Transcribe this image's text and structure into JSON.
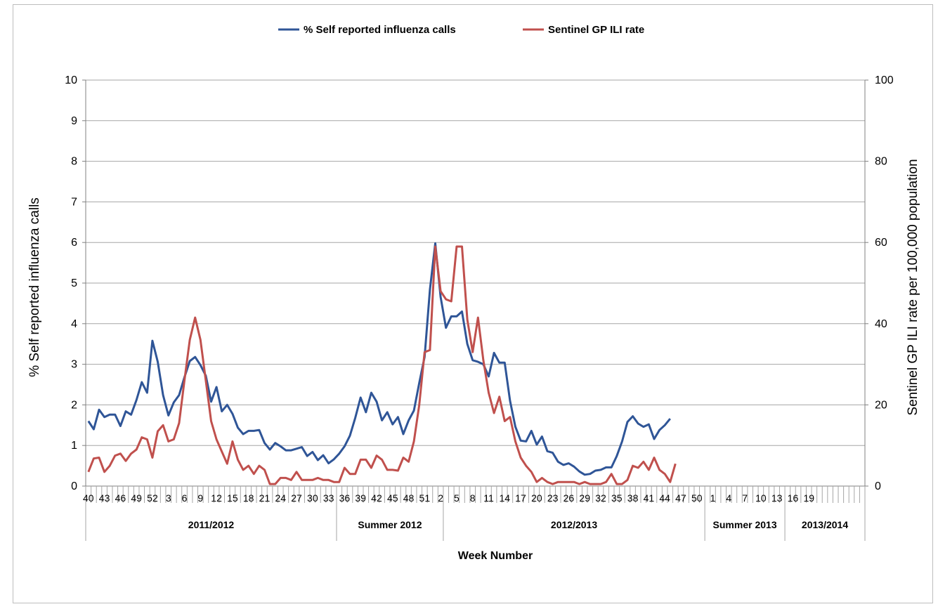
{
  "chart_data": {
    "type": "line",
    "x_axis": {
      "label": "Week Number",
      "tick_labels": [
        "40",
        "43",
        "46",
        "49",
        "52",
        "3",
        "6",
        "9",
        "12",
        "15",
        "18",
        "21",
        "24",
        "27",
        "30",
        "33",
        "36",
        "39",
        "42",
        "45",
        "48",
        "51",
        "2",
        "5",
        "8",
        "11",
        "14",
        "17",
        "20",
        "23",
        "26",
        "29",
        "32",
        "35",
        "38",
        "41",
        "44",
        "47",
        "50",
        "1",
        "4",
        "7",
        "10",
        "13",
        "16",
        "19"
      ],
      "periods": [
        "2011/2012",
        "Summer 2012",
        "2012/2013",
        "Summer 2013",
        "2013/2014"
      ]
    },
    "y_left": {
      "label": "% Self reported influenza calls",
      "ylim": [
        0,
        10
      ],
      "ticks": [
        "0",
        "1",
        "2",
        "3",
        "4",
        "5",
        "6",
        "7",
        "8",
        "9",
        "10"
      ]
    },
    "y_right": {
      "label": "Sentinel GP ILI rate per 100,000 population",
      "ylim": [
        0,
        100
      ],
      "ticks": [
        "0",
        "20",
        "40",
        "60",
        "80",
        "100"
      ]
    },
    "legend_position": "top-center",
    "grid": true,
    "series": [
      {
        "name": "% Self reported influenza calls",
        "color": "#2f5597",
        "axis": "left",
        "values": [
          1.6,
          1.4,
          1.88,
          1.7,
          1.76,
          1.76,
          1.48,
          1.84,
          1.76,
          2.12,
          2.56,
          2.3,
          3.58,
          3.06,
          2.24,
          1.74,
          2.06,
          2.24,
          2.68,
          3.08,
          3.18,
          2.98,
          2.72,
          2.08,
          2.44,
          1.84,
          2.0,
          1.78,
          1.44,
          1.28,
          1.36,
          1.36,
          1.38,
          1.06,
          0.9,
          1.06,
          0.98,
          0.88,
          0.88,
          0.92,
          0.96,
          0.74,
          0.84,
          0.64,
          0.76,
          0.56,
          0.66,
          0.8,
          0.98,
          1.24,
          1.68,
          2.18,
          1.82,
          2.3,
          2.08,
          1.62,
          1.82,
          1.52,
          1.7,
          1.28,
          1.62,
          1.86,
          2.54,
          3.18,
          4.84,
          5.98,
          4.66,
          3.9,
          4.18,
          4.18,
          4.3,
          3.5,
          3.1,
          3.06,
          3.0,
          2.7,
          3.28,
          3.04,
          3.04,
          2.1,
          1.46,
          1.12,
          1.1,
          1.36,
          1.02,
          1.22,
          0.86,
          0.82,
          0.6,
          0.52,
          0.56,
          0.48,
          0.36,
          0.28,
          0.3,
          0.38,
          0.4,
          0.46,
          0.46,
          0.74,
          1.1,
          1.58,
          1.72,
          1.54,
          1.46,
          1.52,
          1.16,
          1.38,
          1.5,
          1.66
        ]
      },
      {
        "name": "Sentinel GP ILI rate",
        "color": "#c0504d",
        "axis": "right",
        "values": [
          3.5,
          6.8,
          7.0,
          3.5,
          5.0,
          7.5,
          8.0,
          6.2,
          8.0,
          9.0,
          12.0,
          11.5,
          7.0,
          13.5,
          15.0,
          11.0,
          11.5,
          15.5,
          26.0,
          36.0,
          41.5,
          36.0,
          26.0,
          16.0,
          11.5,
          8.5,
          5.5,
          11.0,
          6.5,
          4.0,
          5.0,
          3.0,
          5.0,
          4.0,
          0.5,
          0.5,
          2.0,
          2.0,
          1.5,
          3.5,
          1.5,
          1.5,
          1.5,
          2.0,
          1.5,
          1.5,
          1.0,
          1.0,
          4.5,
          3.0,
          3.0,
          6.5,
          6.5,
          4.5,
          7.5,
          6.5,
          4.0,
          4.0,
          3.8,
          7.0,
          6.0,
          11.0,
          20.0,
          33.0,
          33.5,
          59.0,
          48.0,
          46.0,
          45.5,
          59.0,
          59.0,
          41.0,
          33.0,
          41.5,
          31.0,
          23.0,
          18.0,
          22.0,
          16.0,
          17.0,
          11.0,
          7.0,
          5.0,
          3.5,
          1.0,
          2.0,
          1.0,
          0.5,
          1.0,
          1.0,
          1.0,
          1.0,
          0.5,
          1.0,
          0.5,
          0.5,
          0.5,
          1.0,
          3.0,
          0.5,
          0.5,
          1.5,
          5.0,
          4.5,
          6.0,
          4.0,
          7.0,
          4.0,
          3.0,
          1.0,
          5.5
        ]
      }
    ]
  }
}
